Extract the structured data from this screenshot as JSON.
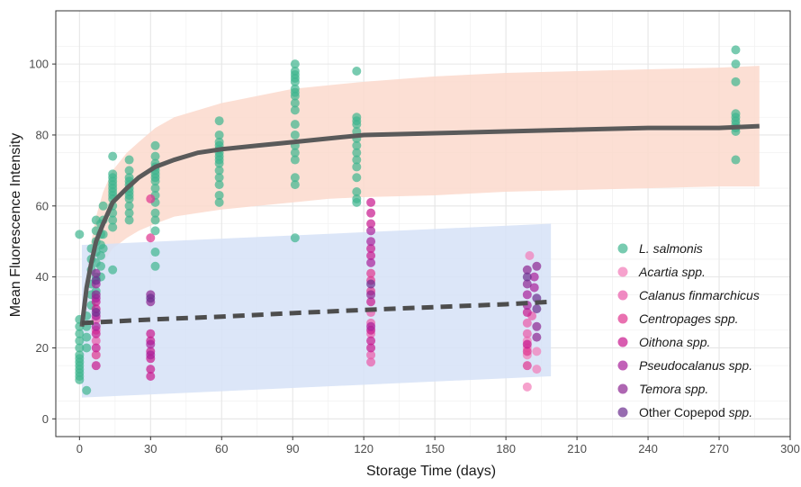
{
  "chart_data": {
    "type": "scatter",
    "xlabel": "Storage Time (days)",
    "ylabel": "Mean Fluorescence Intensity",
    "xlim": [
      -10,
      300
    ],
    "ylim": [
      -5,
      115
    ],
    "x_ticks": [
      0,
      30,
      60,
      90,
      120,
      150,
      180,
      210,
      240,
      270,
      300
    ],
    "y_ticks": [
      0,
      20,
      40,
      60,
      80,
      100
    ],
    "grid": true,
    "legend_position": "inside-right",
    "series": [
      {
        "name": "L. salmonis",
        "color": "#3fb58f",
        "points": [
          [
            0,
            11
          ],
          [
            0,
            12
          ],
          [
            0,
            13
          ],
          [
            0,
            14
          ],
          [
            0,
            15
          ],
          [
            0,
            16
          ],
          [
            0,
            17
          ],
          [
            0,
            18
          ],
          [
            0,
            20
          ],
          [
            0,
            22
          ],
          [
            0,
            24
          ],
          [
            0,
            26
          ],
          [
            0,
            28
          ],
          [
            0,
            52
          ],
          [
            3,
            8
          ],
          [
            3,
            20
          ],
          [
            3,
            23
          ],
          [
            3,
            26
          ],
          [
            3,
            29
          ],
          [
            5,
            32
          ],
          [
            5,
            35
          ],
          [
            5,
            38
          ],
          [
            5,
            42
          ],
          [
            5,
            45
          ],
          [
            5,
            48
          ],
          [
            7,
            36
          ],
          [
            7,
            40
          ],
          [
            7,
            44
          ],
          [
            7,
            47
          ],
          [
            7,
            50
          ],
          [
            7,
            53
          ],
          [
            7,
            56
          ],
          [
            9,
            40
          ],
          [
            9,
            43
          ],
          [
            9,
            46
          ],
          [
            9,
            49
          ],
          [
            9,
            52
          ],
          [
            9,
            55
          ],
          [
            10,
            48
          ],
          [
            10,
            52
          ],
          [
            10,
            56
          ],
          [
            10,
            60
          ],
          [
            14,
            42
          ],
          [
            14,
            54
          ],
          [
            14,
            56
          ],
          [
            14,
            58
          ],
          [
            14,
            60
          ],
          [
            14,
            62
          ],
          [
            14,
            63
          ],
          [
            14,
            64
          ],
          [
            14,
            65
          ],
          [
            14,
            66
          ],
          [
            14,
            67
          ],
          [
            14,
            68
          ],
          [
            14,
            69
          ],
          [
            14,
            74
          ],
          [
            21,
            56
          ],
          [
            21,
            58
          ],
          [
            21,
            60
          ],
          [
            21,
            62
          ],
          [
            21,
            63
          ],
          [
            21,
            64
          ],
          [
            21,
            65
          ],
          [
            21,
            66
          ],
          [
            21,
            67
          ],
          [
            21,
            68
          ],
          [
            21,
            70
          ],
          [
            21,
            73
          ],
          [
            32,
            43
          ],
          [
            32,
            47
          ],
          [
            32,
            53
          ],
          [
            32,
            56
          ],
          [
            32,
            58
          ],
          [
            32,
            61
          ],
          [
            32,
            63
          ],
          [
            32,
            65
          ],
          [
            32,
            67
          ],
          [
            32,
            68
          ],
          [
            32,
            69
          ],
          [
            32,
            70
          ],
          [
            32,
            71
          ],
          [
            32,
            72
          ],
          [
            32,
            74
          ],
          [
            32,
            77
          ],
          [
            59,
            61
          ],
          [
            59,
            63
          ],
          [
            59,
            66
          ],
          [
            59,
            68
          ],
          [
            59,
            70
          ],
          [
            59,
            72
          ],
          [
            59,
            73
          ],
          [
            59,
            74
          ],
          [
            59,
            75
          ],
          [
            59,
            76
          ],
          [
            59,
            77
          ],
          [
            59,
            78
          ],
          [
            59,
            80
          ],
          [
            59,
            84
          ],
          [
            91,
            51
          ],
          [
            91,
            66
          ],
          [
            91,
            68
          ],
          [
            91,
            73
          ],
          [
            91,
            75
          ],
          [
            91,
            77
          ],
          [
            91,
            80
          ],
          [
            91,
            83
          ],
          [
            91,
            87
          ],
          [
            91,
            89
          ],
          [
            91,
            91
          ],
          [
            91,
            92
          ],
          [
            91,
            93
          ],
          [
            91,
            95
          ],
          [
            91,
            96
          ],
          [
            91,
            97
          ],
          [
            91,
            98
          ],
          [
            91,
            100
          ],
          [
            117,
            61
          ],
          [
            117,
            62
          ],
          [
            117,
            64
          ],
          [
            117,
            68
          ],
          [
            117,
            71
          ],
          [
            117,
            73
          ],
          [
            117,
            75
          ],
          [
            117,
            77
          ],
          [
            117,
            79
          ],
          [
            117,
            81
          ],
          [
            117,
            83
          ],
          [
            117,
            84
          ],
          [
            117,
            85
          ],
          [
            117,
            98
          ],
          [
            277,
            73
          ],
          [
            277,
            81
          ],
          [
            277,
            82
          ],
          [
            277,
            83
          ],
          [
            277,
            84
          ],
          [
            277,
            85
          ],
          [
            277,
            86
          ],
          [
            277,
            95
          ],
          [
            277,
            100
          ],
          [
            277,
            104
          ]
        ]
      },
      {
        "name": "Acartia spp.",
        "color": "#f27bb8",
        "points": [
          [
            189,
            9
          ],
          [
            189,
            18
          ],
          [
            189,
            20
          ],
          [
            189,
            22
          ],
          [
            190,
            46
          ],
          [
            193,
            14
          ],
          [
            193,
            19
          ]
        ]
      },
      {
        "name": "Calanus finmarchicus",
        "color": "#ea59a8",
        "points": [
          [
            7,
            22
          ],
          [
            7,
            25
          ],
          [
            7,
            28
          ],
          [
            123,
            16
          ],
          [
            123,
            18
          ],
          [
            123,
            24
          ],
          [
            123,
            27
          ],
          [
            123,
            30
          ],
          [
            189,
            24
          ],
          [
            189,
            27
          ],
          [
            191,
            29
          ]
        ]
      },
      {
        "name": "Centropages spp.",
        "color": "#e0358f",
        "points": [
          [
            7,
            18
          ],
          [
            30,
            62
          ],
          [
            30,
            51
          ],
          [
            123,
            36
          ],
          [
            123,
            39
          ],
          [
            123,
            41
          ],
          [
            189,
            15
          ],
          [
            189,
            19
          ]
        ]
      },
      {
        "name": "Oithona spp.",
        "color": "#c7178d",
        "points": [
          [
            7,
            15
          ],
          [
            7,
            20
          ],
          [
            7,
            24
          ],
          [
            7,
            31
          ],
          [
            7,
            33
          ],
          [
            30,
            12
          ],
          [
            30,
            14
          ],
          [
            30,
            17
          ],
          [
            30,
            19
          ],
          [
            30,
            22
          ],
          [
            30,
            24
          ],
          [
            123,
            20
          ],
          [
            123,
            22
          ],
          [
            123,
            25
          ],
          [
            123,
            33
          ],
          [
            123,
            46
          ],
          [
            123,
            48
          ],
          [
            123,
            55
          ],
          [
            123,
            58
          ],
          [
            123,
            61
          ],
          [
            189,
            21
          ],
          [
            189,
            30
          ]
        ]
      },
      {
        "name": "Pseudocalanus spp.",
        "color": "#a8209a",
        "points": [
          [
            7,
            26
          ],
          [
            7,
            29
          ],
          [
            7,
            34
          ],
          [
            7,
            38
          ],
          [
            30,
            18
          ],
          [
            30,
            21
          ],
          [
            123,
            26
          ],
          [
            123,
            44
          ],
          [
            123,
            50
          ],
          [
            123,
            53
          ],
          [
            189,
            32
          ],
          [
            189,
            35
          ],
          [
            192,
            37
          ],
          [
            192,
            40
          ]
        ]
      },
      {
        "name": "Temora spp.",
        "color": "#8b2592",
        "points": [
          [
            7,
            35
          ],
          [
            7,
            41
          ],
          [
            30,
            33
          ],
          [
            30,
            35
          ],
          [
            123,
            35
          ],
          [
            189,
            38
          ],
          [
            189,
            42
          ],
          [
            193,
            23
          ],
          [
            193,
            26
          ],
          [
            193,
            43
          ]
        ]
      },
      {
        "name": "Other Copepod spp.",
        "color": "#6b2d8f",
        "points": [
          [
            7,
            30
          ],
          [
            7,
            39
          ],
          [
            30,
            34
          ],
          [
            123,
            38
          ],
          [
            189,
            40
          ],
          [
            193,
            31
          ],
          [
            193,
            34
          ]
        ]
      }
    ],
    "fits": [
      {
        "style": "solid",
        "color": "#5a5a5a",
        "band_color": "#fcd9cc",
        "line": [
          [
            1,
            26
          ],
          [
            3,
            37
          ],
          [
            5,
            44
          ],
          [
            7,
            50
          ],
          [
            10,
            55
          ],
          [
            14,
            61
          ],
          [
            20,
            65
          ],
          [
            25,
            68
          ],
          [
            32,
            71
          ],
          [
            40,
            73
          ],
          [
            50,
            75
          ],
          [
            60,
            76
          ],
          [
            75,
            77
          ],
          [
            90,
            78
          ],
          [
            105,
            79
          ],
          [
            120,
            80
          ],
          [
            150,
            80.5
          ],
          [
            180,
            81
          ],
          [
            210,
            81.5
          ],
          [
            240,
            82
          ],
          [
            270,
            82
          ],
          [
            287,
            82.5
          ]
        ],
        "band_upper": [
          [
            1,
            27
          ],
          [
            3,
            42
          ],
          [
            5,
            50
          ],
          [
            7,
            57
          ],
          [
            10,
            64
          ],
          [
            14,
            70
          ],
          [
            20,
            75
          ],
          [
            25,
            78
          ],
          [
            32,
            82
          ],
          [
            40,
            85
          ],
          [
            50,
            87
          ],
          [
            60,
            89
          ],
          [
            75,
            91
          ],
          [
            90,
            93
          ],
          [
            105,
            94
          ],
          [
            120,
            95
          ],
          [
            150,
            96.5
          ],
          [
            180,
            97.5
          ],
          [
            210,
            98
          ],
          [
            240,
            98.5
          ],
          [
            270,
            99
          ],
          [
            287,
            99.5
          ]
        ],
        "band_lower": [
          [
            1,
            25
          ],
          [
            3,
            30
          ],
          [
            5,
            36
          ],
          [
            7,
            40
          ],
          [
            10,
            44
          ],
          [
            14,
            48
          ],
          [
            20,
            51
          ],
          [
            25,
            53
          ],
          [
            32,
            55
          ],
          [
            40,
            57
          ],
          [
            50,
            58
          ],
          [
            60,
            59
          ],
          [
            75,
            60
          ],
          [
            90,
            61
          ],
          [
            105,
            62
          ],
          [
            120,
            62.5
          ],
          [
            150,
            63
          ],
          [
            180,
            64
          ],
          [
            210,
            64.5
          ],
          [
            240,
            65
          ],
          [
            270,
            65.5
          ],
          [
            287,
            65.5
          ]
        ]
      },
      {
        "style": "dashed",
        "color": "#4d4d4d",
        "band_color": "#d6e2f7",
        "line": [
          [
            1,
            27
          ],
          [
            30,
            28
          ],
          [
            60,
            28.8
          ],
          [
            90,
            29.8
          ],
          [
            120,
            30.7
          ],
          [
            150,
            31.5
          ],
          [
            180,
            32.3
          ],
          [
            199,
            33
          ]
        ],
        "band_upper": [
          [
            1,
            49
          ],
          [
            199,
            55
          ]
        ],
        "band_lower": [
          [
            1,
            6
          ],
          [
            199,
            12
          ]
        ]
      }
    ]
  }
}
